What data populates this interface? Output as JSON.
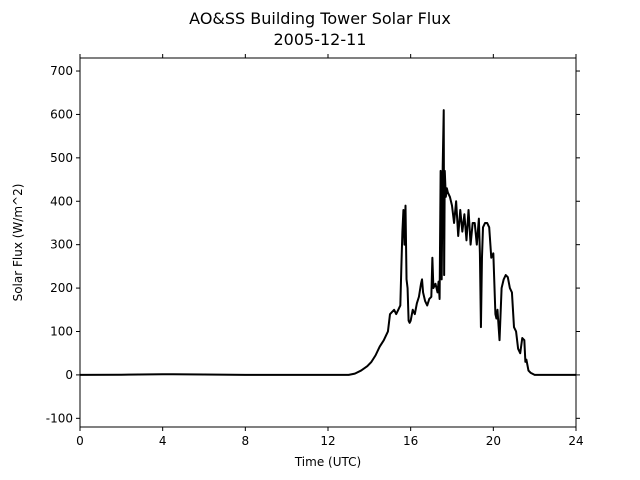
{
  "chart_data": {
    "type": "line",
    "title": "AO&SS Building Tower Solar Flux",
    "subtitle": "2005-12-11",
    "xlabel": "Time (UTC)",
    "ylabel": "Solar Flux (W/m^2)",
    "xlim": [
      0,
      24
    ],
    "ylim": [
      -120,
      730
    ],
    "xticks": [
      0,
      4,
      8,
      12,
      16,
      20,
      24
    ],
    "yticks": [
      -100,
      0,
      100,
      200,
      300,
      400,
      500,
      600,
      700
    ],
    "grid": false,
    "series": [
      {
        "color": "#000000",
        "x": [
          0,
          2,
          4,
          4.5,
          6,
          8,
          10,
          12,
          13,
          13.3,
          13.6,
          13.9,
          14.1,
          14.3,
          14.5,
          14.7,
          14.9,
          15.0,
          15.1,
          15.2,
          15.3,
          15.4,
          15.5,
          15.55,
          15.6,
          15.65,
          15.7,
          15.75,
          15.8,
          15.85,
          15.9,
          15.95,
          16.0,
          16.1,
          16.2,
          16.3,
          16.4,
          16.5,
          16.55,
          16.6,
          16.7,
          16.8,
          16.9,
          17.0,
          17.05,
          17.1,
          17.2,
          17.3,
          17.35,
          17.4,
          17.45,
          17.5,
          17.55,
          17.6,
          17.62,
          17.65,
          17.7,
          17.75,
          17.8,
          17.9,
          18.0,
          18.1,
          18.2,
          18.3,
          18.4,
          18.5,
          18.6,
          18.7,
          18.8,
          18.9,
          19.0,
          19.1,
          19.2,
          19.3,
          19.35,
          19.4,
          19.45,
          19.5,
          19.6,
          19.7,
          19.8,
          19.9,
          20.0,
          20.05,
          20.1,
          20.15,
          20.2,
          20.3,
          20.4,
          20.5,
          20.6,
          20.7,
          20.8,
          20.9,
          21.0,
          21.1,
          21.2,
          21.3,
          21.4,
          21.5,
          21.55,
          21.6,
          21.7,
          21.8,
          22.0,
          22.2,
          22.5,
          23.0,
          24.0
        ],
        "y": [
          0,
          0.5,
          1.5,
          1.5,
          1,
          0,
          0,
          0,
          0,
          3,
          10,
          20,
          30,
          45,
          65,
          80,
          100,
          140,
          145,
          150,
          140,
          150,
          160,
          250,
          330,
          380,
          300,
          390,
          220,
          200,
          125,
          120,
          125,
          150,
          140,
          165,
          180,
          210,
          220,
          190,
          170,
          160,
          175,
          180,
          270,
          200,
          210,
          190,
          215,
          175,
          470,
          220,
          480,
          610,
          230,
          470,
          410,
          430,
          420,
          410,
          390,
          350,
          400,
          320,
          380,
          330,
          370,
          310,
          380,
          300,
          350,
          350,
          300,
          360,
          280,
          110,
          270,
          340,
          350,
          350,
          340,
          270,
          280,
          210,
          140,
          130,
          150,
          80,
          200,
          220,
          230,
          225,
          200,
          190,
          110,
          100,
          60,
          50,
          85,
          80,
          30,
          35,
          10,
          5,
          0,
          0,
          0,
          0,
          0
        ]
      }
    ]
  }
}
